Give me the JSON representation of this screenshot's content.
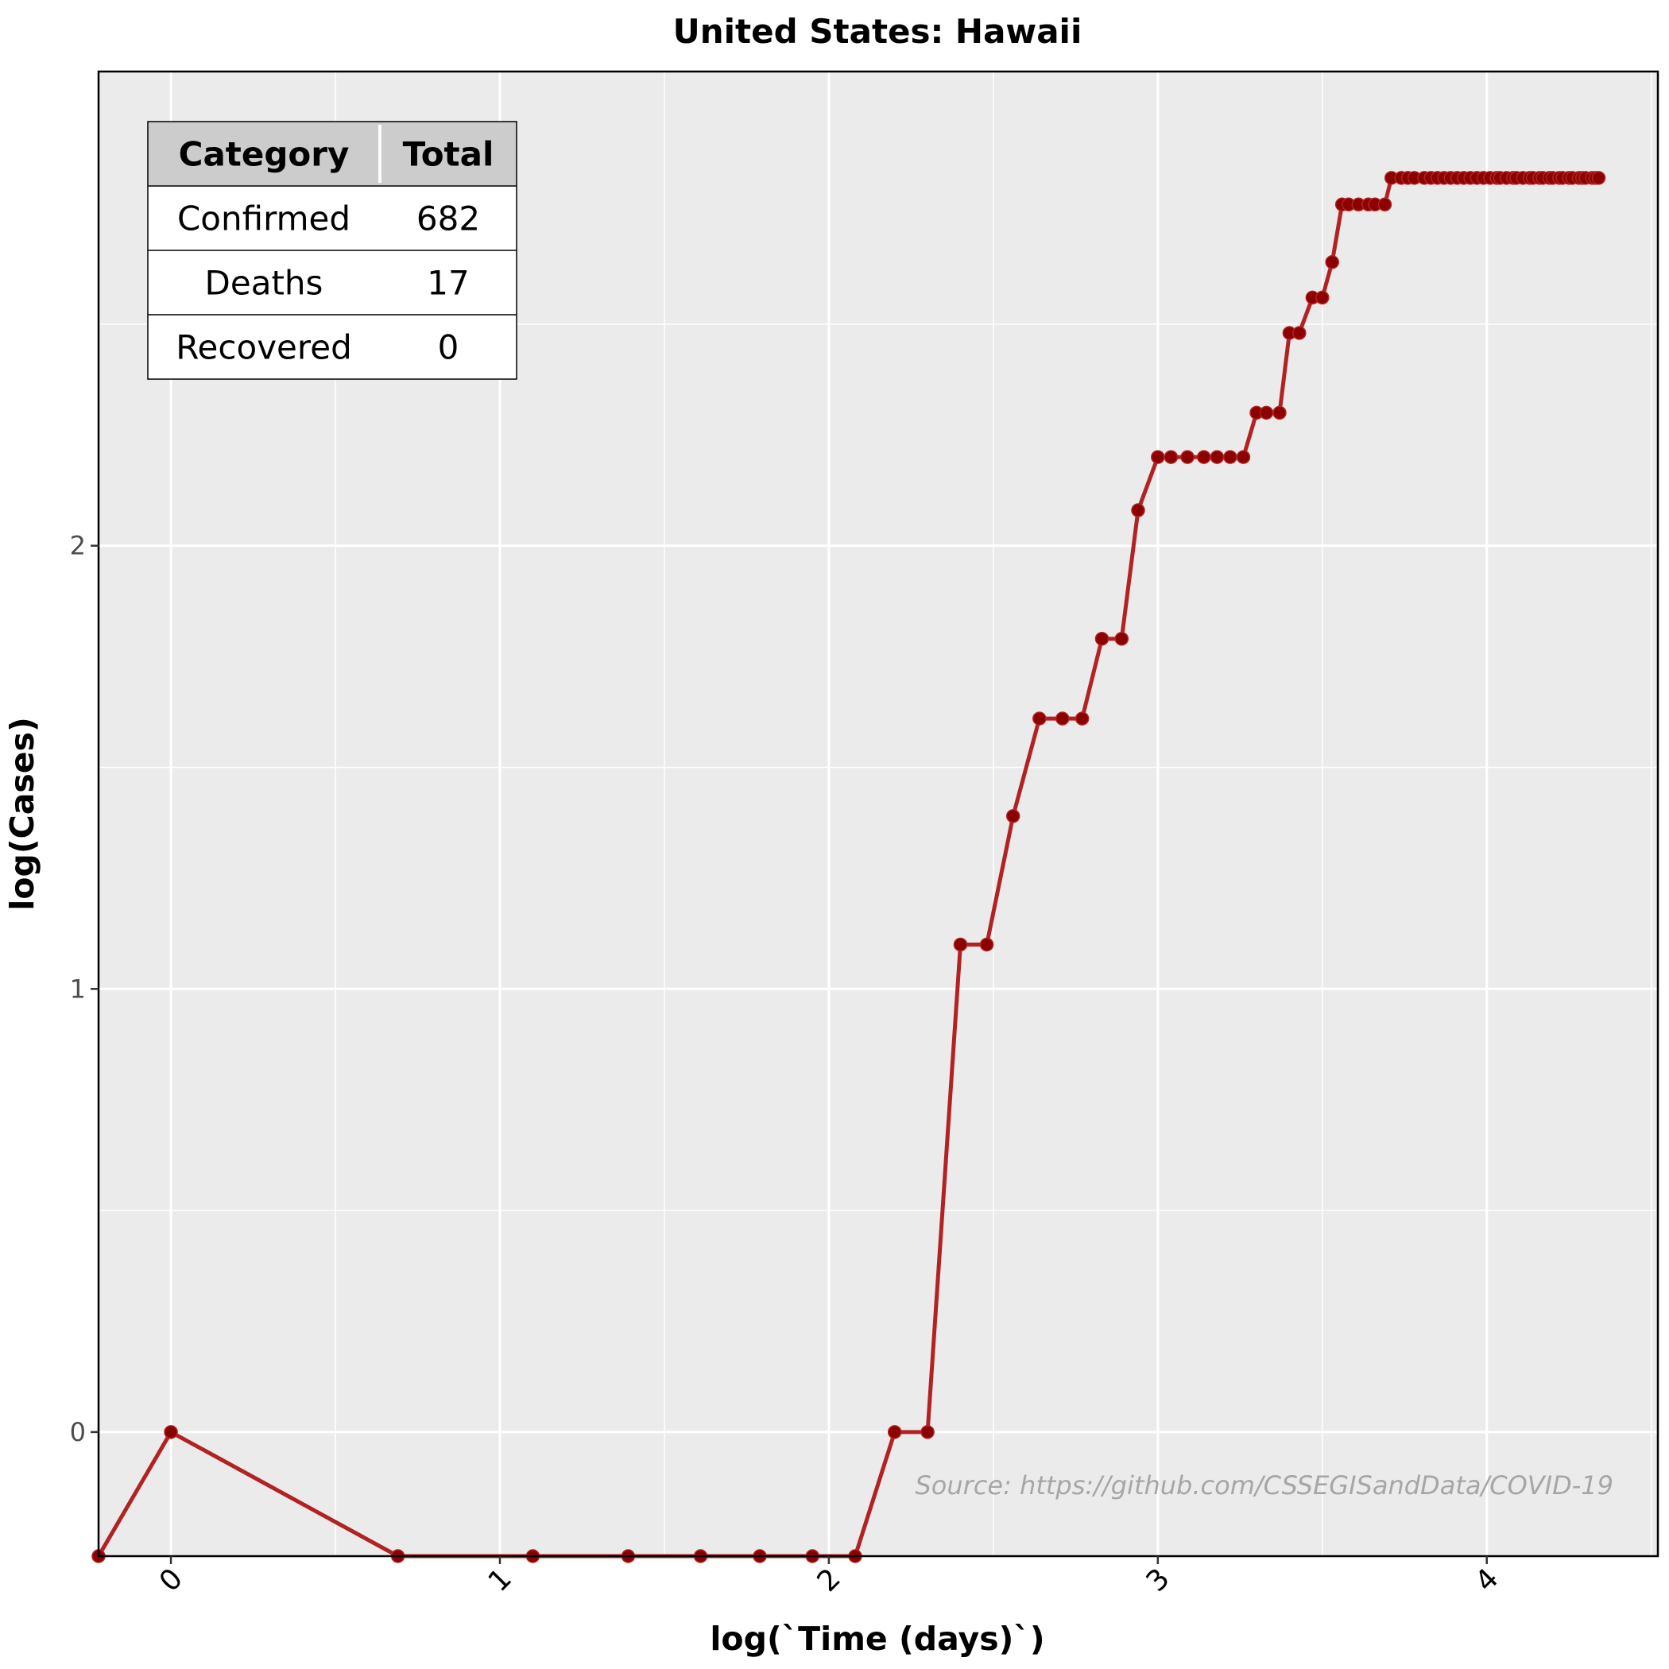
{
  "chart_data": {
    "type": "line",
    "title": "United States: Hawaii",
    "xlabel": "log(`Time (days)`)",
    "ylabel": "log(Cases)",
    "xlim": [
      -0.22,
      4.52
    ],
    "ylim": [
      -0.28,
      3.07
    ],
    "x_ticks": [
      0,
      1,
      2,
      3,
      4
    ],
    "x_tick_labels": [
      "0",
      "1",
      "2",
      "3",
      "4"
    ],
    "y_ticks": [
      0,
      1,
      2
    ],
    "y_tick_labels": [
      "0",
      "1",
      "2"
    ],
    "grid": true,
    "line_color": "#b22222",
    "point_color": "#8b0000",
    "panel_background": "#ebebeb",
    "source_note": "Source: https://github.com/CSSEGISandData/COVID-19",
    "series": [
      {
        "x": [
          -0.22,
          0.0,
          0.69,
          1.1,
          1.39,
          1.61,
          1.79,
          1.95,
          2.08,
          2.2,
          2.3,
          2.4,
          2.48,
          2.56,
          2.64,
          2.71,
          2.77,
          2.83,
          2.89,
          2.94,
          3.0,
          3.04,
          3.09,
          3.14,
          3.18,
          3.22,
          3.26,
          3.3,
          3.33,
          3.37,
          3.4,
          3.43,
          3.47,
          3.5,
          3.53,
          3.56,
          3.58,
          3.61,
          3.64,
          3.66,
          3.69,
          3.71,
          3.74,
          3.76,
          3.78,
          3.81,
          3.83,
          3.85,
          3.87,
          3.89,
          3.91,
          3.93,
          3.95,
          3.97,
          3.99,
          4.01,
          4.03,
          4.04,
          4.06,
          4.08,
          4.09,
          4.11,
          4.13,
          4.14,
          4.16,
          4.17,
          4.19,
          4.2,
          4.22,
          4.23,
          4.25,
          4.26,
          4.28,
          4.29,
          4.3,
          4.32,
          4.33,
          4.34
        ],
        "y": [
          -0.28,
          0.0,
          -0.28,
          -0.28,
          -0.28,
          -0.28,
          -0.28,
          -0.28,
          -0.28,
          0.0,
          0.0,
          1.1,
          1.1,
          1.39,
          1.61,
          1.61,
          1.61,
          1.79,
          1.79,
          2.08,
          2.2,
          2.2,
          2.2,
          2.2,
          2.2,
          2.2,
          2.2,
          2.3,
          2.3,
          2.3,
          2.48,
          2.48,
          2.56,
          2.56,
          2.64,
          2.77,
          2.77,
          2.77,
          2.77,
          2.77,
          2.77,
          2.83,
          2.83,
          2.83,
          2.83,
          2.83,
          2.83,
          2.83,
          2.83,
          2.83,
          2.83,
          2.83,
          2.83,
          2.83,
          2.83,
          2.83,
          2.83,
          2.83,
          2.83,
          2.83,
          2.83,
          2.83,
          2.83,
          2.83,
          2.83,
          2.83,
          2.83,
          2.83,
          2.83,
          2.83,
          2.83,
          2.83,
          2.83,
          2.83,
          2.83,
          2.83,
          2.83,
          2.83
        ]
      }
    ]
  },
  "summary_table": {
    "headers": [
      "Category",
      "Total"
    ],
    "rows": [
      [
        "Confirmed",
        "682"
      ],
      [
        "Deaths",
        "17"
      ],
      [
        "Recovered",
        "0"
      ]
    ]
  }
}
